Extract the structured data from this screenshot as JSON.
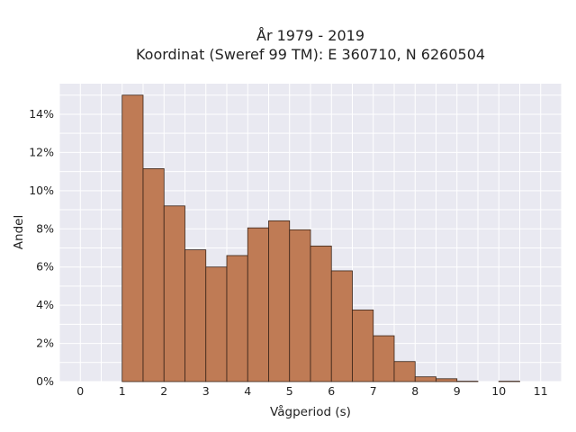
{
  "chart_data": {
    "type": "bar",
    "title_line1": "År 1979 - 2019",
    "title_line2": "Koordinat (Sweref 99 TM): E 360710, N 6260504",
    "xlabel": "Vågperiod (s)",
    "ylabel": "Andel",
    "bin_width": 0.5,
    "bin_starts": [
      0,
      0.5,
      1,
      1.5,
      2,
      2.5,
      3,
      3.5,
      4,
      4.5,
      5,
      5.5,
      6,
      6.5,
      7,
      7.5,
      8,
      8.5,
      9,
      9.5,
      10,
      10.5,
      11
    ],
    "values": [
      0.0,
      0.0,
      15.0,
      11.15,
      9.2,
      6.9,
      6.0,
      6.6,
      8.05,
      8.42,
      7.95,
      7.1,
      5.8,
      3.75,
      2.4,
      1.05,
      0.25,
      0.15,
      0.02,
      0.0,
      0.02,
      0.0,
      0.0
    ],
    "xlim": [
      -0.5,
      11.5
    ],
    "ylim": [
      0,
      15.6
    ],
    "xticks": [
      0,
      1,
      2,
      3,
      4,
      5,
      6,
      7,
      8,
      9,
      10,
      11
    ],
    "yticks": [
      0,
      2,
      4,
      6,
      8,
      10,
      12,
      14
    ],
    "ytick_suffix": "%",
    "grid": true,
    "colors": {
      "bar_fill": "#bf7b55",
      "bar_stroke": "#3a2418",
      "plot_bg": "#e9e9f1",
      "grid": "#ffffff"
    }
  }
}
